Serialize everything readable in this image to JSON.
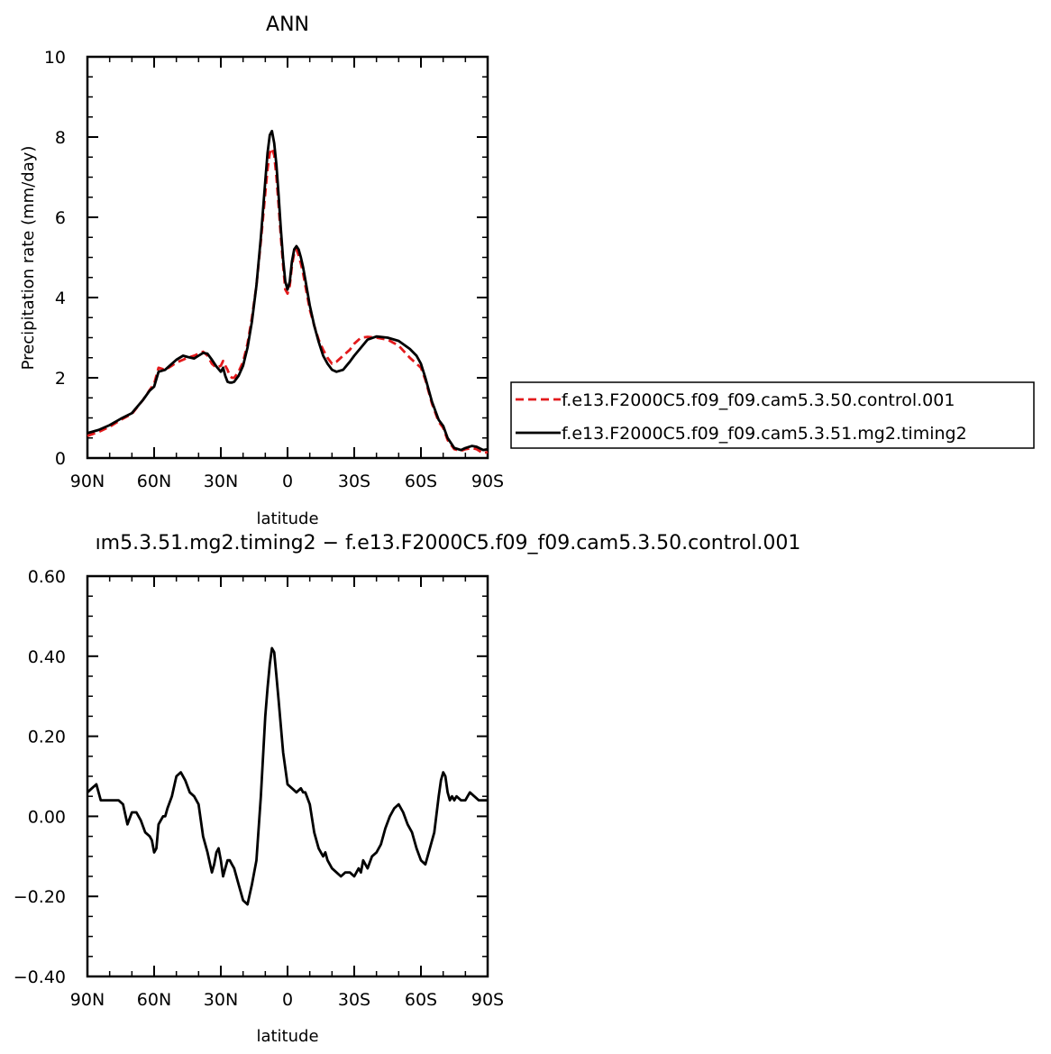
{
  "chart_data": [
    {
      "type": "line",
      "title": "ANN",
      "xlabel": "latitude",
      "ylabel": "Precipitation rate (mm/day)",
      "xlim": [
        90,
        -90
      ],
      "ylim": [
        0,
        10
      ],
      "xticks": [
        90,
        60,
        30,
        0,
        -30,
        -60,
        -90
      ],
      "xtick_labels": [
        "90N",
        "60N",
        "30N",
        "0",
        "30S",
        "60S",
        "90S"
      ],
      "yticks": [
        0,
        2,
        4,
        6,
        8,
        10
      ],
      "ytick_labels": [
        "0",
        "2",
        "4",
        "6",
        "8",
        "10"
      ],
      "legend_position": "right",
      "series": [
        {
          "name": "f.e13.F2000C5.f09_f09.cam5.3.50.control.001",
          "color": "#e31a1c",
          "style": "dashed",
          "x": [
            90,
            85,
            80,
            75,
            70,
            65,
            62,
            60,
            58,
            55,
            52,
            50,
            47,
            45,
            42,
            40,
            38,
            36,
            34,
            32,
            30,
            29,
            28,
            27,
            26,
            25,
            24,
            22,
            20,
            18,
            16,
            14,
            12,
            10,
            9,
            8,
            7,
            6,
            5,
            4,
            3,
            2,
            1,
            0,
            -1,
            -2,
            -3,
            -4,
            -5,
            -6,
            -7,
            -8,
            -10,
            -12,
            -14,
            -16,
            -18,
            -20,
            -22,
            -25,
            -28,
            -30,
            -33,
            -36,
            -40,
            -45,
            -50,
            -55,
            -58,
            -60,
            -62,
            -65,
            -68,
            -70,
            -72,
            -75,
            -78,
            -80,
            -83,
            -85,
            -88,
            -90
          ],
          "y": [
            0.55,
            0.65,
            0.78,
            0.95,
            1.1,
            1.45,
            1.7,
            1.85,
            2.25,
            2.2,
            2.3,
            2.38,
            2.45,
            2.5,
            2.55,
            2.6,
            2.65,
            2.55,
            2.35,
            2.25,
            2.3,
            2.42,
            2.3,
            2.2,
            2.05,
            2.0,
            2.0,
            2.15,
            2.4,
            2.85,
            3.5,
            4.3,
            5.4,
            6.6,
            7.2,
            7.6,
            7.72,
            7.55,
            7.0,
            6.3,
            5.5,
            4.8,
            4.2,
            4.1,
            4.3,
            4.8,
            5.1,
            5.2,
            5.05,
            4.85,
            4.6,
            4.3,
            3.7,
            3.3,
            2.95,
            2.7,
            2.5,
            2.35,
            2.4,
            2.55,
            2.7,
            2.85,
            3.0,
            3.02,
            3.0,
            2.95,
            2.8,
            2.5,
            2.35,
            2.25,
            1.95,
            1.35,
            0.9,
            0.75,
            0.45,
            0.22,
            0.18,
            0.22,
            0.25,
            0.22,
            0.12,
            0.15
          ]
        },
        {
          "name": "f.e13.F2000C5.f09_f09.cam5.3.51.mg2.timing2",
          "color": "#000000",
          "style": "solid",
          "x": [
            90,
            85,
            80,
            75,
            70,
            65,
            62,
            60,
            58,
            55,
            52,
            50,
            47,
            45,
            42,
            40,
            38,
            36,
            34,
            32,
            30,
            29,
            28,
            27,
            26,
            25,
            24,
            22,
            20,
            18,
            16,
            14,
            12,
            10,
            9,
            8,
            7,
            6,
            5,
            4,
            3,
            2,
            1,
            0,
            -1,
            -2,
            -3,
            -4,
            -5,
            -6,
            -7,
            -8,
            -10,
            -12,
            -14,
            -16,
            -18,
            -20,
            -22,
            -25,
            -28,
            -30,
            -33,
            -36,
            -40,
            -45,
            -50,
            -55,
            -58,
            -60,
            -62,
            -65,
            -68,
            -70,
            -72,
            -75,
            -78,
            -80,
            -83,
            -85,
            -88,
            -90
          ],
          "y": [
            0.62,
            0.7,
            0.82,
            0.98,
            1.12,
            1.45,
            1.68,
            1.78,
            2.15,
            2.2,
            2.35,
            2.45,
            2.55,
            2.52,
            2.48,
            2.55,
            2.62,
            2.6,
            2.45,
            2.28,
            2.15,
            2.25,
            2.05,
            1.9,
            1.88,
            1.88,
            1.9,
            2.05,
            2.3,
            2.75,
            3.4,
            4.3,
            5.5,
            6.9,
            7.6,
            8.05,
            8.15,
            7.85,
            7.3,
            6.55,
            5.7,
            4.95,
            4.4,
            4.2,
            4.4,
            4.9,
            5.2,
            5.28,
            5.2,
            5.0,
            4.75,
            4.45,
            3.8,
            3.3,
            2.9,
            2.55,
            2.35,
            2.2,
            2.15,
            2.2,
            2.4,
            2.55,
            2.75,
            2.95,
            3.03,
            3.0,
            2.92,
            2.72,
            2.55,
            2.35,
            2.0,
            1.4,
            0.95,
            0.8,
            0.5,
            0.25,
            0.2,
            0.25,
            0.3,
            0.28,
            0.2,
            0.22
          ]
        }
      ]
    },
    {
      "type": "line",
      "title": "ım5.3.51.mg2.timing2 − f.e13.F2000C5.f09_f09.cam5.3.50.control.001",
      "xlabel": "latitude",
      "ylabel": "",
      "xlim": [
        90,
        -90
      ],
      "ylim": [
        -0.4,
        0.6
      ],
      "xticks": [
        90,
        60,
        30,
        0,
        -30,
        -60,
        -90
      ],
      "xtick_labels": [
        "90N",
        "60N",
        "30N",
        "0",
        "30S",
        "60S",
        "90S"
      ],
      "yticks": [
        -0.4,
        -0.2,
        0.0,
        0.2,
        0.4,
        0.6
      ],
      "ytick_labels": [
        "−0.40",
        "−0.20",
        "0.00",
        "0.20",
        "0.40",
        "0.60"
      ],
      "series": [
        {
          "color": "#000000",
          "style": "solid",
          "x": [
            90,
            88,
            86,
            84,
            82,
            80,
            78,
            76,
            74,
            72,
            70,
            68,
            66,
            64,
            62,
            61,
            60,
            59,
            58,
            57,
            56,
            55,
            54,
            52,
            50,
            48,
            46,
            44,
            42,
            40,
            38,
            36,
            34,
            33,
            32,
            31,
            30,
            29,
            28,
            27,
            26,
            25,
            24,
            22,
            20,
            18,
            16,
            14,
            12,
            10,
            9,
            8,
            7,
            6,
            5,
            4,
            2,
            0,
            -2,
            -4,
            -6,
            -7,
            -8,
            -10,
            -12,
            -14,
            -15,
            -16,
            -17,
            -18,
            -20,
            -22,
            -24,
            -26,
            -28,
            -30,
            -32,
            -33,
            -34,
            -36,
            -38,
            -40,
            -42,
            -44,
            -46,
            -48,
            -50,
            -52,
            -54,
            -56,
            -58,
            -60,
            -62,
            -64,
            -66,
            -68,
            -69,
            -70,
            -71,
            -72,
            -73,
            -74,
            -75,
            -76,
            -78,
            -80,
            -82,
            -84,
            -86,
            -88,
            -90
          ],
          "y": [
            0.06,
            0.07,
            0.08,
            0.04,
            0.04,
            0.04,
            0.04,
            0.04,
            0.03,
            -0.02,
            0.01,
            0.01,
            -0.01,
            -0.04,
            -0.05,
            -0.06,
            -0.09,
            -0.08,
            -0.02,
            -0.01,
            -0.0,
            0.0,
            0.02,
            0.05,
            0.1,
            0.11,
            0.09,
            0.06,
            0.05,
            0.03,
            -0.05,
            -0.09,
            -0.14,
            -0.12,
            -0.09,
            -0.08,
            -0.11,
            -0.15,
            -0.13,
            -0.11,
            -0.11,
            -0.12,
            -0.13,
            -0.17,
            -0.21,
            -0.22,
            -0.17,
            -0.11,
            0.05,
            0.25,
            0.32,
            0.38,
            0.42,
            0.41,
            0.35,
            0.29,
            0.16,
            0.08,
            0.07,
            0.06,
            0.07,
            0.06,
            0.06,
            0.03,
            -0.04,
            -0.08,
            -0.09,
            -0.1,
            -0.09,
            -0.11,
            -0.13,
            -0.14,
            -0.15,
            -0.14,
            -0.14,
            -0.15,
            -0.13,
            -0.14,
            -0.11,
            -0.13,
            -0.1,
            -0.09,
            -0.07,
            -0.03,
            0.0,
            0.02,
            0.03,
            0.01,
            -0.02,
            -0.04,
            -0.08,
            -0.11,
            -0.12,
            -0.08,
            -0.04,
            0.05,
            0.09,
            0.11,
            0.1,
            0.06,
            0.04,
            0.05,
            0.04,
            0.05,
            0.04,
            0.04,
            0.06,
            0.05,
            0.04,
            0.04,
            0.04
          ]
        }
      ]
    }
  ]
}
